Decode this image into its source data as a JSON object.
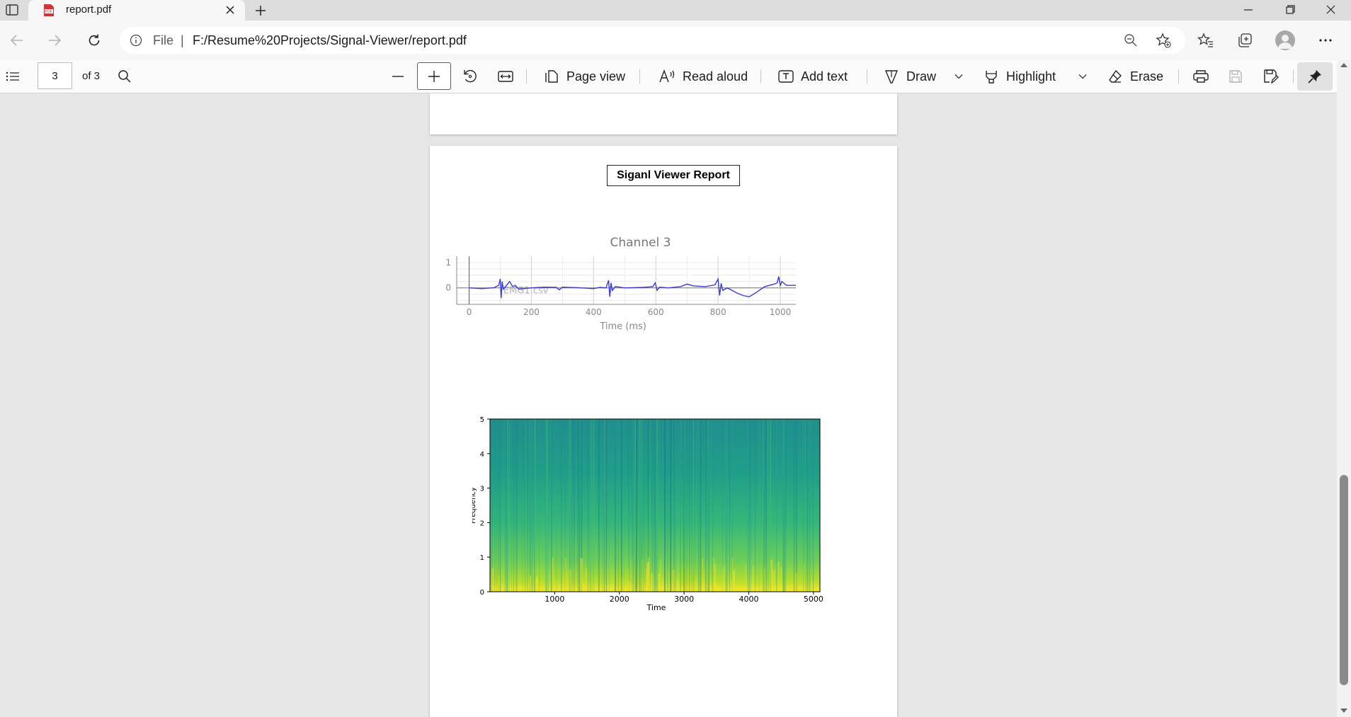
{
  "browser": {
    "tab": {
      "title": "report.pdf",
      "favicon_text": "PDF"
    },
    "address": {
      "scheme_label": "File",
      "separator": "|",
      "url": "F:/Resume%20Projects/Signal-Viewer/report.pdf"
    },
    "icons": [
      "tab-actions-icon",
      "pdf-file-icon",
      "close-icon",
      "plus-icon",
      "minimize-icon",
      "restore-icon",
      "close-window-icon",
      "back-arrow-icon",
      "forward-arrow-icon",
      "refresh-icon",
      "info-icon",
      "zoom-out-icon",
      "add-favorite-icon",
      "favorites-icon",
      "collections-icon",
      "profile-icon",
      "more-icon"
    ]
  },
  "pdf_toolbar": {
    "current_page": "3",
    "page_count_label": "of 3",
    "page_view": "Page view",
    "read_aloud": "Read aloud",
    "add_text": "Add text",
    "draw": "Draw",
    "highlight": "Highlight",
    "erase": "Erase"
  },
  "report": {
    "title": "Siganl Viewer Report"
  },
  "chart_data": [
    {
      "type": "line",
      "title": "Channel 3",
      "xlabel": "Time (ms)",
      "ylabel": "",
      "watermark": "EMG1.csv",
      "xlim": [
        -40,
        1050
      ],
      "ylim": [
        -0.65,
        1.25
      ],
      "xticks": [
        0,
        200,
        400,
        600,
        800,
        1000
      ],
      "yticks": [
        0,
        1
      ],
      "grid": true,
      "color": "#3b3bdc",
      "series": [
        {
          "x": [
            0,
            40,
            80,
            95,
            100,
            103,
            106,
            110,
            130,
            140,
            148,
            160,
            200,
            240,
            280,
            290,
            300,
            350,
            400,
            420,
            440,
            448,
            452,
            456,
            460,
            470,
            500,
            560,
            590,
            598,
            604,
            612,
            640,
            680,
            700,
            720,
            760,
            790,
            800,
            805,
            810,
            815,
            830,
            860,
            880,
            900,
            920,
            950,
            980,
            990,
            995,
            1000,
            1005,
            1020,
            1050
          ],
          "y": [
            0.0,
            -0.03,
            0.01,
            0.1,
            0.35,
            -0.4,
            0.25,
            -0.05,
            0.25,
            0.05,
            0.1,
            -0.05,
            0.0,
            0.03,
            0.02,
            -0.08,
            0.03,
            0.01,
            -0.03,
            0.02,
            0.0,
            0.3,
            -0.35,
            0.2,
            -0.1,
            0.05,
            0.0,
            0.02,
            0.05,
            0.2,
            -0.1,
            0.03,
            0.0,
            0.05,
            0.15,
            0.08,
            0.05,
            0.12,
            0.35,
            -0.3,
            0.18,
            -0.1,
            0.0,
            -0.2,
            -0.3,
            -0.35,
            -0.2,
            0.05,
            0.15,
            0.2,
            0.45,
            0.1,
            0.25,
            0.1,
            0.1
          ]
        }
      ]
    },
    {
      "type": "heatmap",
      "title": "",
      "xlabel": "Time",
      "ylabel": "Frequency",
      "xlim": [
        0,
        5100
      ],
      "ylim": [
        0,
        5
      ],
      "xticks": [
        1000,
        2000,
        3000,
        4000,
        5000
      ],
      "yticks": [
        0,
        1,
        2,
        3,
        4,
        5
      ],
      "colormap": [
        "#1d8a8a",
        "#1f9e89",
        "#35b779",
        "#6ece58",
        "#b5de2b",
        "#fde725"
      ]
    }
  ]
}
